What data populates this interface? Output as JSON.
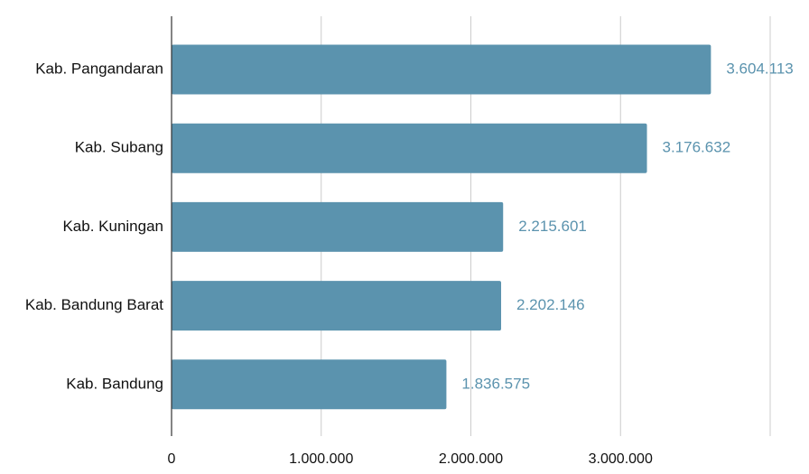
{
  "chart_data": {
    "type": "bar",
    "orientation": "horizontal",
    "categories": [
      "Kab. Pangandaran",
      "Kab. Subang",
      "Kab. Kuningan",
      "Kab. Bandung Barat",
      "Kab. Bandung"
    ],
    "values": [
      3604113,
      3176632,
      2215601,
      2202146,
      1836575
    ],
    "value_labels": [
      "3.604.113",
      "3.176.632",
      "2.215.601",
      "2.202.146",
      "1.836.575"
    ],
    "xlim": [
      0,
      4000000
    ],
    "x_ticks": [
      0,
      1000000,
      2000000,
      3000000
    ],
    "x_tick_labels": [
      "0",
      "1.000.000",
      "2.000.000",
      "3.000.000"
    ],
    "grid": true,
    "title": "",
    "xlabel": "",
    "ylabel": ""
  },
  "colors": {
    "bar": "#5b93ae",
    "value_label": "#5b93ae",
    "gridline": "#cccccc",
    "axis": "#333333"
  }
}
